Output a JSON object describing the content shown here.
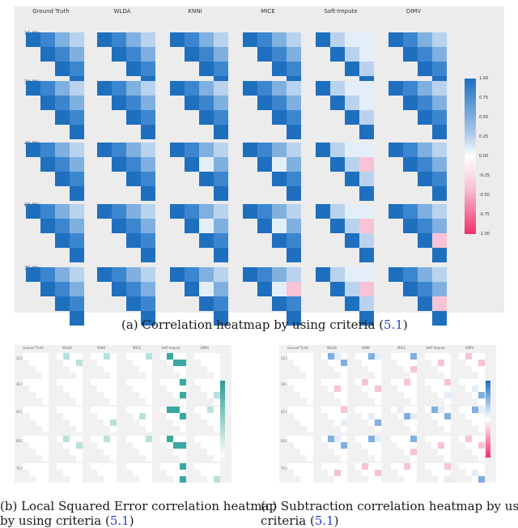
{
  "figure_a": {
    "methods": [
      "Ground Truth",
      "WLDA",
      "KNNI",
      "MICE",
      "Soft-Impute",
      "DIMV"
    ],
    "rows": [
      "15.0%",
      "30.0%",
      "45.0%",
      "60.0%",
      "75.0%"
    ],
    "colorbar_ticks": [
      "1.00",
      "0.75",
      "0.50",
      "0.25",
      "0.00",
      "-0.25",
      "-0.50",
      "-0.75",
      "-1.00"
    ],
    "caption_prefix": "(a) Correlation heatmap by using criteria (",
    "caption_ref": "5.1",
    "caption_suffix": ")"
  },
  "figure_b": {
    "caption_line1": "(b) Local Squared Error correlation heatmap",
    "caption_line2_prefix": "by using criteria (",
    "caption_ref": "5.1",
    "caption_suffix": ")"
  },
  "figure_c": {
    "caption_line1": "(c) Subtraction correlation heatmap by using",
    "caption_line2_prefix": "criteria (",
    "caption_ref": "5.1",
    "caption_suffix": ")"
  },
  "colors": {
    "diag": "#1f6fbf",
    "strong": "#3b86cf",
    "mid": "#7fb0e0",
    "light": "#b9d3ee",
    "pale": "#e4eef9",
    "pink": "#f7c3d6",
    "teal": "#3aa9a0",
    "teal_light": "#b9e1dd"
  },
  "chart_data": [
    {
      "type": "heatmap",
      "panel": "a",
      "matrix": "upper-triangular 4x4 correlation",
      "values_legend": "blue = positive correlation, pink = negative correlation",
      "range": [
        -1.0,
        1.0
      ]
    },
    {
      "type": "heatmap",
      "panel": "b",
      "matrix": "upper-triangular 4x4 local squared error",
      "values_legend": "teal intensity = error magnitude"
    },
    {
      "type": "heatmap",
      "panel": "c",
      "matrix": "upper-triangular 4x4 subtraction",
      "values_legend": "blue = positive difference, pink = negative difference"
    }
  ]
}
